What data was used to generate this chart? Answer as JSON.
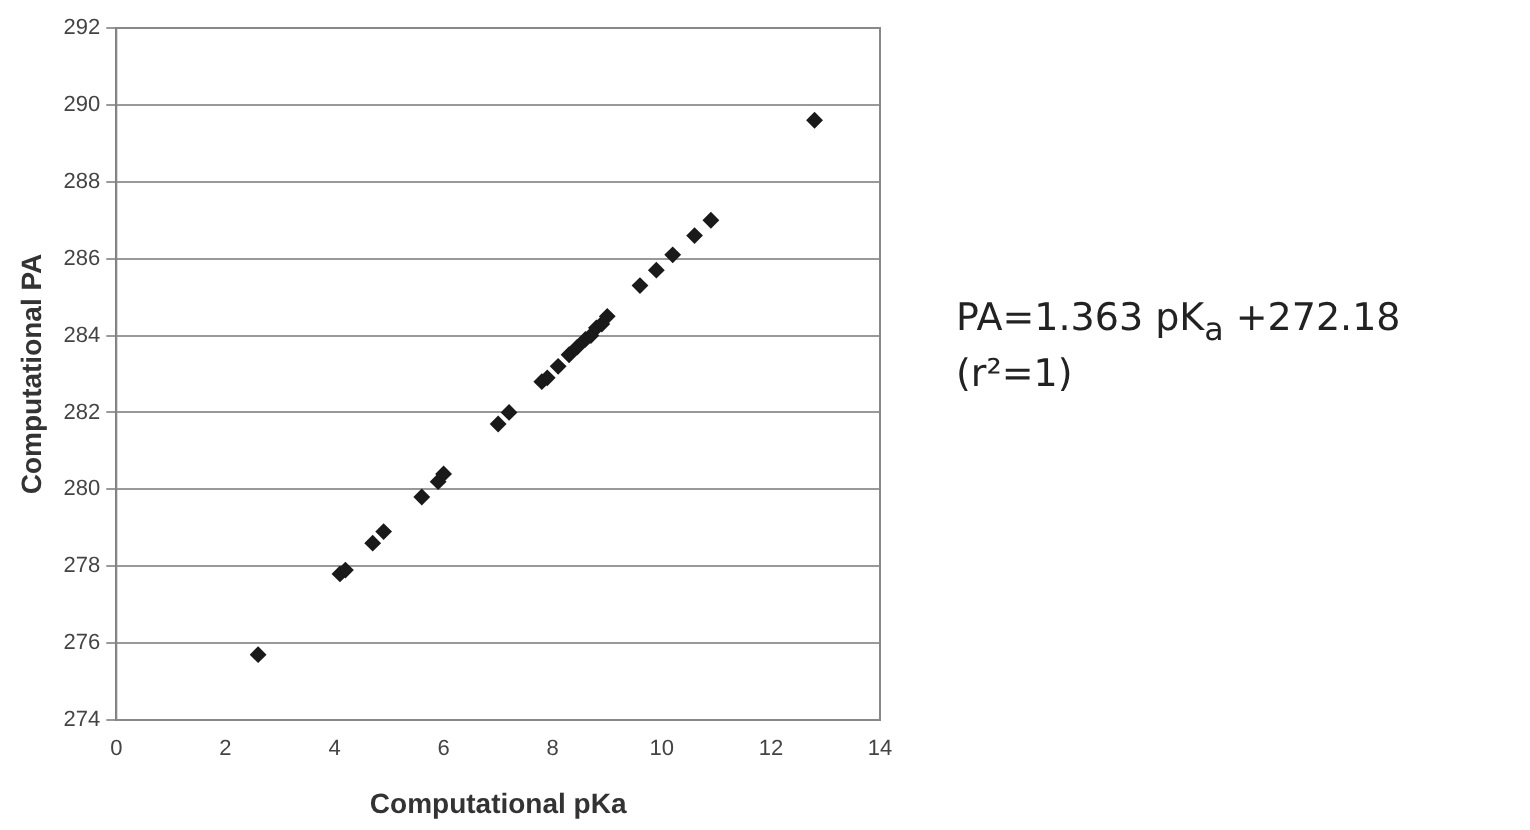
{
  "chart_data": {
    "type": "scatter",
    "xlabel": "Computational pKa",
    "ylabel": "Computational PA",
    "x": [
      2.6,
      4.1,
      4.2,
      4.7,
      4.9,
      5.6,
      5.9,
      6.0,
      7.0,
      7.2,
      7.8,
      7.9,
      8.1,
      8.3,
      8.45,
      8.6,
      8.7,
      8.8,
      8.9,
      9.0,
      9.6,
      9.9,
      10.2,
      10.6,
      10.9,
      12.8
    ],
    "series": [
      {
        "color": "#1a1a1a",
        "values": [
          275.7,
          277.8,
          277.9,
          278.6,
          278.9,
          279.8,
          280.2,
          280.4,
          281.7,
          282.0,
          282.8,
          282.9,
          283.2,
          283.5,
          283.7,
          283.9,
          284.0,
          284.2,
          284.3,
          284.5,
          285.3,
          285.7,
          286.1,
          286.6,
          287.0,
          289.6
        ]
      }
    ],
    "xlim": [
      0,
      14
    ],
    "xticks": [
      0,
      2,
      4,
      6,
      8,
      10,
      12,
      14
    ],
    "ylim": [
      274,
      292
    ],
    "yticks": [
      274,
      276,
      278,
      280,
      282,
      284,
      286,
      288,
      290,
      292
    ],
    "grid": "y",
    "marker": "diamond",
    "legend": false,
    "annotations": [
      "PA=1.363 pK$_{a}$ +272.18",
      "(r²=1)"
    ]
  }
}
